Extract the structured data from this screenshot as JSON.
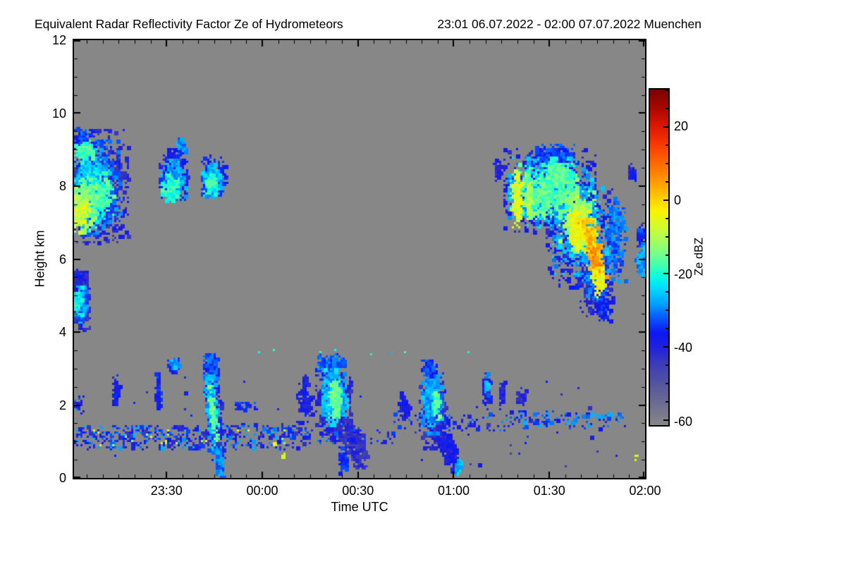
{
  "chart_data": {
    "type": "heatmap",
    "title": "Equivalent Radar Reflectivity Factor Ze of Hydrometeors",
    "period": "23:01 06.07.2022 - 02:00 07.07.2022 Muenchen",
    "xlabel": "Time UTC",
    "ylabel": "Height km",
    "x_start_label": "23:01",
    "x_end_label": "02:00",
    "x_span_minutes": 179,
    "x_minor_step_minutes": 5,
    "x_minor_offset_minutes": 4,
    "x_ticks": [
      {
        "label": "23:30",
        "t": 29
      },
      {
        "label": "00:00",
        "t": 59
      },
      {
        "label": "00:30",
        "t": 89
      },
      {
        "label": "01:00",
        "t": 119
      },
      {
        "label": "01:30",
        "t": 149
      },
      {
        "label": "02:00",
        "t": 179
      }
    ],
    "ylim": [
      0,
      12
    ],
    "y_ticks": [
      0,
      2,
      4,
      6,
      8,
      10,
      12
    ],
    "y_minor_step": 0.5,
    "background_color": "#878787",
    "colorbar": {
      "label": "Ze dBZ",
      "min": -61,
      "max": 30,
      "ticks": [
        20,
        0,
        -20,
        -40,
        -60
      ],
      "minor_step": 5,
      "stops": [
        [
          -61,
          "#878787"
        ],
        [
          -56,
          "#70708f"
        ],
        [
          -50,
          "#55559e"
        ],
        [
          -44,
          "#3a3abc"
        ],
        [
          -40,
          "#2020dd"
        ],
        [
          -36,
          "#0c17f5"
        ],
        [
          -32,
          "#0857ff"
        ],
        [
          -28,
          "#00a2ff"
        ],
        [
          -24,
          "#00d9ff"
        ],
        [
          -21,
          "#06fce4"
        ],
        [
          -18,
          "#3cffb4"
        ],
        [
          -15,
          "#6eff91"
        ],
        [
          -11,
          "#a5ff5f"
        ],
        [
          -7,
          "#d4fb2c"
        ],
        [
          -3,
          "#f8f400"
        ],
        [
          1,
          "#ffc800"
        ],
        [
          5,
          "#ff9b00"
        ],
        [
          9,
          "#ff7300"
        ],
        [
          13,
          "#ff4c00"
        ],
        [
          17,
          "#ee2a00"
        ],
        [
          21,
          "#d21400"
        ],
        [
          25,
          "#a80700"
        ],
        [
          30,
          "#7b0000"
        ]
      ]
    },
    "clouds": [
      {
        "name": "cirrus-band-upper-left",
        "blobs": [
          {
            "t": 7,
            "h": 8.05,
            "rt": 10,
            "rh": 1.55,
            "v": -41,
            "n": 850
          },
          {
            "t": 5.5,
            "h": 8.0,
            "rt": 8.5,
            "rh": 1.3,
            "v": -31,
            "n": 750
          },
          {
            "t": 3.5,
            "h": 7.9,
            "rt": 7,
            "rh": 1.15,
            "v": -25,
            "n": 650
          },
          {
            "t": 2,
            "h": 9.25,
            "rt": 3,
            "rh": 0.4,
            "v": -33,
            "n": 140
          },
          {
            "t": 3,
            "h": 9.0,
            "rt": 3,
            "rh": 0.3,
            "v": -18,
            "n": 110
          },
          {
            "t": 8,
            "h": 7.8,
            "rt": 4,
            "rh": 0.6,
            "v": -18,
            "n": 200
          },
          {
            "t": 2,
            "h": 7.5,
            "rt": 5,
            "rh": 0.75,
            "v": -14,
            "n": 330
          },
          {
            "t": 1,
            "h": 7.3,
            "rt": 3.5,
            "rh": 0.5,
            "v": -7,
            "n": 170
          }
        ]
      },
      {
        "name": "cirrus-fragment-a",
        "blobs": [
          {
            "t": 31,
            "h": 8.35,
            "rt": 4.5,
            "rh": 0.7,
            "v": -38,
            "n": 320
          },
          {
            "t": 31,
            "h": 8.2,
            "rt": 3.6,
            "rh": 0.55,
            "v": -28,
            "n": 260
          },
          {
            "t": 30,
            "h": 8.0,
            "rt": 2.8,
            "rh": 0.35,
            "v": -19,
            "n": 110
          },
          {
            "t": 33.5,
            "h": 9.15,
            "rt": 1.5,
            "rh": 0.22,
            "v": -30,
            "n": 55
          }
        ]
      },
      {
        "name": "cirrus-fragment-b",
        "blobs": [
          {
            "t": 43.5,
            "h": 8.3,
            "rt": 4,
            "rh": 0.55,
            "v": -36,
            "n": 260
          },
          {
            "t": 43,
            "h": 8.2,
            "rt": 3,
            "rh": 0.42,
            "v": -26,
            "n": 190
          },
          {
            "t": 42.5,
            "h": 8.1,
            "rt": 2,
            "rh": 0.28,
            "v": -18,
            "n": 85
          }
        ]
      },
      {
        "name": "mid-level-cloud-left-edge",
        "blobs": [
          {
            "t": 1.5,
            "h": 4.9,
            "rt": 3.3,
            "rh": 0.8,
            "v": -41,
            "n": 300
          },
          {
            "t": 1,
            "h": 4.85,
            "rt": 2.5,
            "rh": 0.6,
            "v": -30,
            "n": 230
          },
          {
            "t": 0.5,
            "h": 4.95,
            "rt": 1.7,
            "rh": 0.42,
            "v": -22,
            "n": 120
          },
          {
            "t": 0.5,
            "h": 5.5,
            "rt": 1.2,
            "rh": 0.28,
            "v": -38,
            "n": 60
          }
        ]
      },
      {
        "name": "deep-cloud-upper-right",
        "blobs": [
          {
            "t": 149,
            "h": 7.9,
            "rt": 14.5,
            "rh": 1.15,
            "v": -39,
            "n": 850
          },
          {
            "t": 159,
            "h": 6.7,
            "rt": 11,
            "rh": 1.45,
            "v": -39,
            "n": 650
          },
          {
            "t": 163.5,
            "h": 5.4,
            "rt": 5,
            "rh": 0.95,
            "v": -41,
            "n": 280
          },
          {
            "t": 169,
            "h": 6.6,
            "rt": 3.2,
            "rh": 1.15,
            "v": -31,
            "n": 240
          },
          {
            "t": 150,
            "h": 8.8,
            "rt": 7,
            "rh": 0.38,
            "v": -34,
            "n": 260
          },
          {
            "t": 149,
            "h": 7.9,
            "rt": 13,
            "rh": 0.95,
            "v": -27,
            "n": 750
          },
          {
            "t": 158.5,
            "h": 6.8,
            "rt": 9,
            "rh": 1.2,
            "v": -27,
            "n": 600
          },
          {
            "t": 162.5,
            "h": 5.7,
            "rt": 4,
            "rh": 0.75,
            "v": -30,
            "n": 230
          },
          {
            "t": 147,
            "h": 7.9,
            "rt": 10.5,
            "rh": 0.75,
            "v": -16,
            "n": 520
          },
          {
            "t": 157.5,
            "h": 7.05,
            "rt": 5.5,
            "rh": 0.85,
            "v": -12,
            "n": 320
          },
          {
            "t": 152,
            "h": 8.35,
            "rt": 4.5,
            "rh": 0.45,
            "v": -17,
            "n": 170
          },
          {
            "t": 138.5,
            "h": 7.7,
            "rt": 1.5,
            "rh": 0.8,
            "v": -6,
            "n": 130
          },
          {
            "t": 142,
            "h": 7.6,
            "rt": 1,
            "rh": 0.5,
            "v": -10,
            "n": 65
          },
          {
            "t": 158,
            "h": 6.9,
            "rt": 3.5,
            "rh": 0.6,
            "v": -5,
            "n": 200
          },
          {
            "t": 162,
            "h": 6.35,
            "rt": 2.8,
            "rh": 0.8,
            "v": 1,
            "n": 230,
            "sl": 2.5
          },
          {
            "t": 163,
            "h": 6.0,
            "rt": 1.6,
            "rh": 0.5,
            "v": 6,
            "n": 90,
            "sl": 2.5
          },
          {
            "t": 164.5,
            "h": 5.35,
            "rt": 2,
            "rh": 0.45,
            "v": -4,
            "n": 110,
            "sl": 2
          },
          {
            "t": 165.5,
            "h": 4.75,
            "rt": 2,
            "rh": 0.4,
            "v": -35,
            "n": 120,
            "sl": 2
          },
          {
            "t": 177.5,
            "h": 6.1,
            "rt": 1.5,
            "rh": 0.5,
            "v": -28,
            "n": 85
          },
          {
            "t": 177,
            "h": 6.7,
            "rt": 0.9,
            "rh": 0.3,
            "v": -35,
            "n": 45
          },
          {
            "t": 174.5,
            "h": 8.4,
            "rt": 1,
            "rh": 0.22,
            "v": -40,
            "n": 35
          },
          {
            "t": 132.5,
            "h": 8.45,
            "rt": 1.2,
            "rh": 0.28,
            "v": -40,
            "n": 45
          }
        ]
      },
      {
        "name": "shallow-streak-2345",
        "blobs": [
          {
            "t": 43.5,
            "h": 1.75,
            "rt": 2.5,
            "rh": 1.3,
            "v": -41,
            "n": 270,
            "sl": 1.3
          },
          {
            "t": 42.5,
            "h": 2.95,
            "rt": 2,
            "rh": 0.5,
            "v": -33,
            "n": 170
          },
          {
            "t": 43,
            "h": 1.8,
            "rt": 1.6,
            "rh": 1.05,
            "v": -27,
            "n": 330,
            "sl": 1.3
          },
          {
            "t": 43.2,
            "h": 1.7,
            "rt": 0.8,
            "rh": 0.85,
            "v": -16,
            "n": 150,
            "sl": 1.3
          },
          {
            "t": 45,
            "h": 0.5,
            "rt": 1.4,
            "rh": 0.5,
            "v": -30,
            "n": 140,
            "sl": 1
          }
        ]
      },
      {
        "name": "small-echoes-left",
        "blobs": [
          {
            "t": 31,
            "h": 3.1,
            "rt": 1.7,
            "rh": 0.22,
            "v": -37,
            "n": 85
          },
          {
            "t": 31,
            "h": 3.15,
            "rt": 1.2,
            "rh": 0.15,
            "v": -28,
            "n": 40
          },
          {
            "t": 12.7,
            "h": 2.4,
            "rt": 0.7,
            "rh": 0.45,
            "v": -38,
            "n": 65
          },
          {
            "t": 26,
            "h": 2.4,
            "rt": 0.8,
            "rh": 0.5,
            "v": -36,
            "n": 85
          }
        ]
      },
      {
        "name": "shallow-cloud-0025",
        "blobs": [
          {
            "t": 81,
            "h": 2.1,
            "rt": 5.2,
            "rh": 1.05,
            "v": -41,
            "n": 550
          },
          {
            "t": 72,
            "h": 2.2,
            "rt": 2.5,
            "rh": 0.65,
            "v": -38,
            "n": 150
          },
          {
            "t": 80,
            "h": 3.1,
            "rt": 4.3,
            "rh": 0.3,
            "v": -32,
            "n": 230
          },
          {
            "t": 81,
            "h": 2.25,
            "rt": 3.8,
            "rh": 0.8,
            "v": -26,
            "n": 550
          },
          {
            "t": 81.5,
            "h": 2.2,
            "rt": 1.7,
            "rh": 0.5,
            "v": -15,
            "n": 170
          },
          {
            "t": 87,
            "h": 1.0,
            "rt": 3.3,
            "rh": 0.65,
            "v": -43,
            "n": 280,
            "sl": 3.5
          },
          {
            "t": 84,
            "h": 0.5,
            "rt": 1.4,
            "rh": 0.4,
            "v": -36,
            "n": 90
          }
        ]
      },
      {
        "name": "shallow-cloud-0055",
        "blobs": [
          {
            "t": 112,
            "h": 1.9,
            "rt": 4.3,
            "rh": 1.05,
            "v": -42,
            "n": 450
          },
          {
            "t": 112,
            "h": 2.05,
            "rt": 3,
            "rh": 0.8,
            "v": -28,
            "n": 480
          },
          {
            "t": 113,
            "h": 2.0,
            "rt": 1,
            "rh": 0.4,
            "v": -17,
            "n": 55
          },
          {
            "t": 111,
            "h": 3.0,
            "rt": 2.4,
            "rh": 0.25,
            "v": -34,
            "n": 120
          },
          {
            "t": 117,
            "h": 0.8,
            "rt": 2.4,
            "rh": 0.6,
            "v": -39,
            "n": 200,
            "sl": 3
          },
          {
            "t": 120,
            "h": 0.3,
            "rt": 1,
            "rh": 0.22,
            "v": -26,
            "n": 55
          },
          {
            "t": 103,
            "h": 2.0,
            "rt": 2,
            "rh": 0.4,
            "v": -38,
            "n": 75
          }
        ]
      },
      {
        "name": "small-echoes-right",
        "blobs": [
          {
            "t": 129,
            "h": 2.4,
            "rt": 1.3,
            "rh": 0.5,
            "v": -38,
            "n": 100
          },
          {
            "t": 129,
            "h": 2.6,
            "rt": 0.8,
            "rh": 0.3,
            "v": -28,
            "n": 40
          },
          {
            "t": 134,
            "h": 2.3,
            "rt": 1,
            "rh": 0.32,
            "v": -40,
            "n": 55
          },
          {
            "t": 140,
            "h": 2.2,
            "rt": 1.5,
            "rh": 0.3,
            "v": -41,
            "n": 45
          }
        ]
      }
    ],
    "speckles": [
      {
        "t0": 0,
        "t1": 70,
        "h0": 0.82,
        "h1": 1.48,
        "n": 520,
        "vmin": -45,
        "vmax": -26
      },
      {
        "t0": 0,
        "t1": 70,
        "h0": 0.9,
        "h1": 1.4,
        "n": 22,
        "vmin": -14,
        "vmax": -3
      },
      {
        "t0": 50,
        "t1": 57,
        "h0": 1.9,
        "h1": 2.1,
        "n": 35,
        "vmin": -42,
        "vmax": -31
      },
      {
        "t0": 70,
        "t1": 100,
        "h0": 0.95,
        "h1": 1.4,
        "n": 55,
        "vmin": -44,
        "vmax": -30
      },
      {
        "t0": 100,
        "t1": 135,
        "h0": 1.3,
        "h1": 1.8,
        "n": 75,
        "vmin": -44,
        "vmax": -28
      },
      {
        "t0": 135,
        "t1": 172,
        "h0": 1.4,
        "h1": 1.85,
        "n": 130,
        "vmin": -42,
        "vmax": -26
      },
      {
        "t0": 50,
        "t1": 125,
        "h0": 3.42,
        "h1": 3.55,
        "n": 8,
        "vmin": -26,
        "vmax": -18
      },
      {
        "t0": 0,
        "t1": 2.5,
        "h0": 1.8,
        "h1": 2.3,
        "n": 22,
        "vmin": -40,
        "vmax": -30
      },
      {
        "t0": 0,
        "t1": 179,
        "h0": 0.3,
        "h1": 2.8,
        "n": 55,
        "vmin": -45,
        "vmax": -33
      },
      {
        "t0": 64,
        "t1": 66,
        "h0": 0.6,
        "h1": 0.7,
        "n": 2,
        "vmin": -8,
        "vmax": -6
      },
      {
        "t0": 175,
        "t1": 176.5,
        "h0": 0.5,
        "h1": 0.65,
        "n": 3,
        "vmin": -9,
        "vmax": -5
      }
    ]
  }
}
